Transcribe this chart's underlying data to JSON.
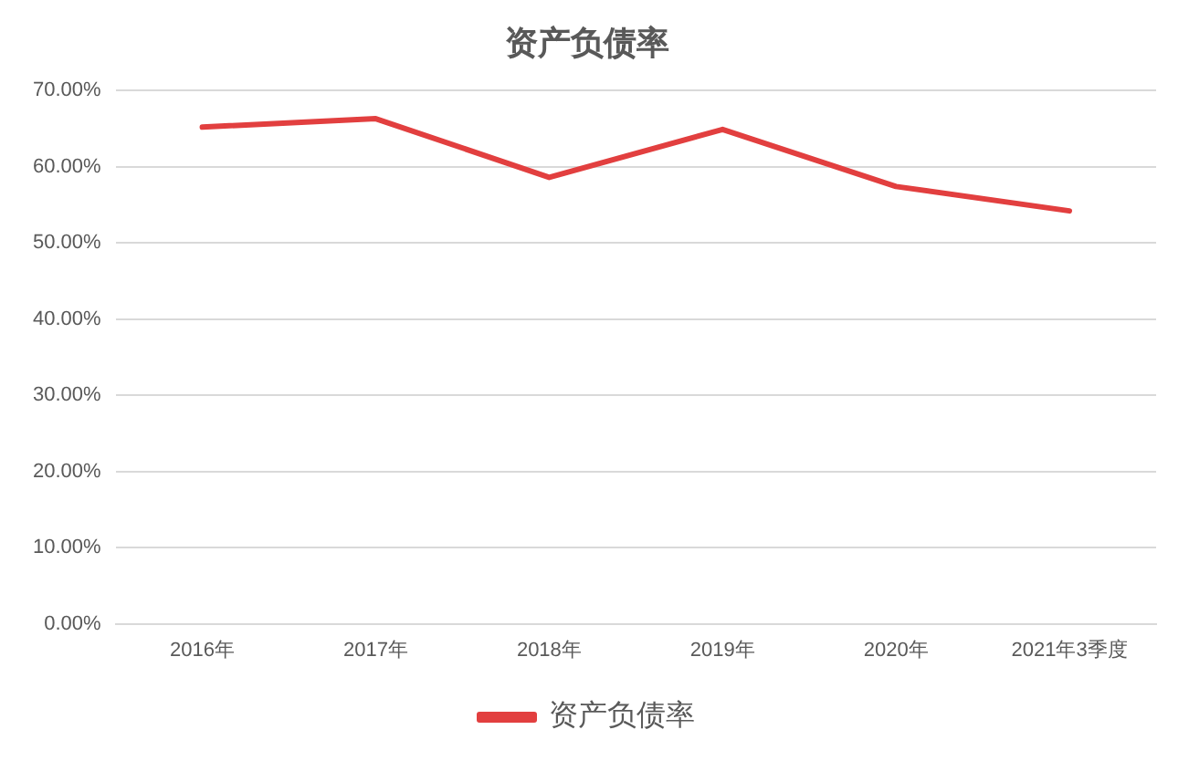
{
  "chart_data": {
    "type": "line",
    "title": "资产负债率",
    "categories": [
      "2016年",
      "2017年",
      "2018年",
      "2019年",
      "2020年",
      "2021年3季度"
    ],
    "series": [
      {
        "name": "资产负债率",
        "color": "#e23f3f",
        "values": [
          65.2,
          66.3,
          58.6,
          64.9,
          57.4,
          54.2
        ]
      }
    ],
    "ylim": [
      0,
      70
    ],
    "yticks": [
      {
        "value": 0,
        "label": "0.00%"
      },
      {
        "value": 10,
        "label": "10.00%"
      },
      {
        "value": 20,
        "label": "20.00%"
      },
      {
        "value": 30,
        "label": "30.00%"
      },
      {
        "value": 40,
        "label": "40.00%"
      },
      {
        "value": 50,
        "label": "50.00%"
      },
      {
        "value": 60,
        "label": "60.00%"
      },
      {
        "value": 70,
        "label": "70.00%"
      }
    ],
    "grid": "y",
    "legend": "bottom",
    "marker": "none",
    "line_style": "solid"
  }
}
